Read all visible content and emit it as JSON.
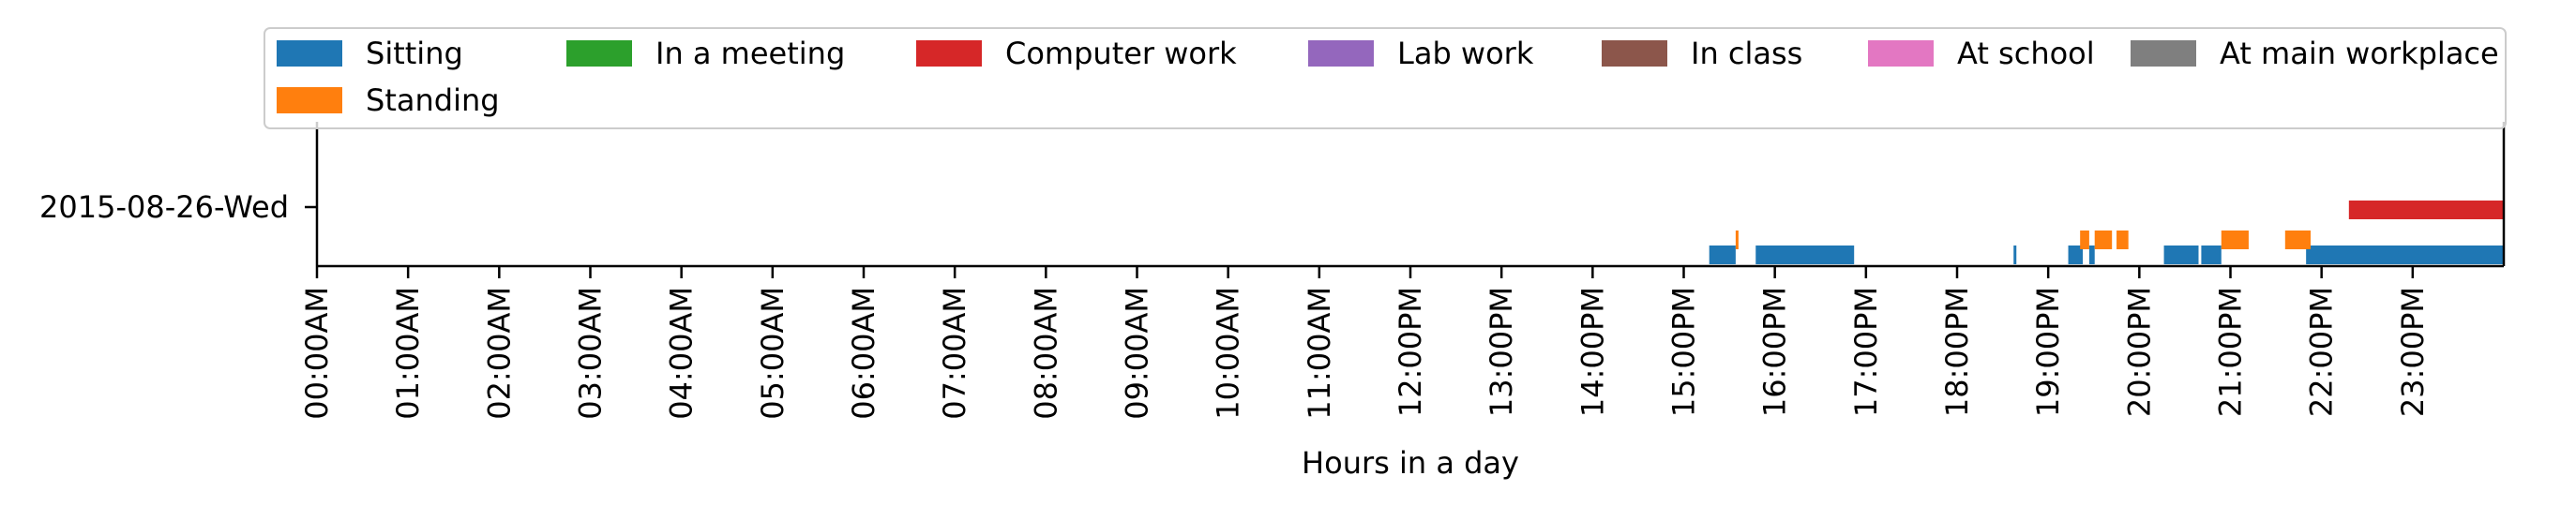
{
  "chart_data": {
    "type": "timeline",
    "title": "",
    "xlabel": "Hours in a day",
    "ylabel": "",
    "x_unit": "hours",
    "xlim": [
      0,
      24
    ],
    "categories": [
      "2015-08-26-Wed"
    ],
    "x_ticks": [
      "00:00AM",
      "01:00AM",
      "02:00AM",
      "03:00AM",
      "04:00AM",
      "05:00AM",
      "06:00AM",
      "07:00AM",
      "08:00AM",
      "09:00AM",
      "10:00AM",
      "11:00AM",
      "12:00PM",
      "13:00PM",
      "14:00PM",
      "15:00PM",
      "16:00PM",
      "17:00PM",
      "18:00PM",
      "19:00PM",
      "20:00PM",
      "21:00PM",
      "22:00PM",
      "23:00PM"
    ],
    "grid": false,
    "legend_position": "top",
    "series": [
      {
        "name": "Sitting",
        "color": "#1f77b4",
        "row": 0,
        "intervals": [
          [
            15.28,
            15.57
          ],
          [
            15.79,
            16.87
          ],
          [
            18.62,
            18.65
          ],
          [
            19.22,
            19.38
          ],
          [
            19.45,
            19.51
          ],
          [
            20.27,
            20.65
          ],
          [
            20.68,
            20.9
          ],
          [
            21.83,
            24.0
          ]
        ]
      },
      {
        "name": "Standing",
        "color": "#ff7f0e",
        "row": 1,
        "intervals": [
          [
            15.57,
            15.6
          ],
          [
            19.35,
            19.45
          ],
          [
            19.51,
            19.7
          ],
          [
            19.75,
            19.88
          ],
          [
            20.9,
            21.2
          ],
          [
            21.6,
            21.88
          ]
        ]
      },
      {
        "name": "In a meeting",
        "color": "#2ca02c",
        "row": 2,
        "intervals": []
      },
      {
        "name": "Computer work",
        "color": "#d62728",
        "row": 3,
        "intervals": [
          [
            22.3,
            24.0
          ]
        ]
      },
      {
        "name": "Lab work",
        "color": "#9467bd",
        "row": 4,
        "intervals": []
      },
      {
        "name": "In class",
        "color": "#8c564b",
        "row": 5,
        "intervals": []
      },
      {
        "name": "At school",
        "color": "#e377c2",
        "row": 6,
        "intervals": []
      },
      {
        "name": "At main workplace",
        "color": "#7f7f7f",
        "row": 7,
        "intervals": []
      }
    ]
  }
}
